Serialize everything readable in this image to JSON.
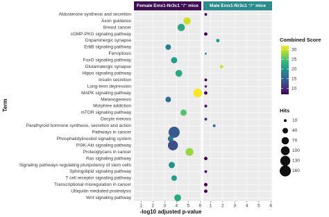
{
  "chart_data": {
    "type": "dotplot",
    "x_label": "-log10 adjusted p-value",
    "y_label": "Term",
    "colormap": "viridis",
    "categories": [
      "Aldosterone synthesis and secretion",
      "Axon guidance",
      "Breast cancer",
      "cGMP-PKG signaling pathway",
      "Dopaminergic synapse",
      "ErbB signaling pathway",
      "Ferroptosis",
      "FoxO signaling pathway",
      "Glutamatergic synapse",
      "Hippo signaling pathway",
      "Insulin secretion",
      "Long-term depression",
      "MAPK signaling pathway",
      "Melanogenesis",
      "Morphine addiction",
      "mTOR signaling pathway",
      "Oocyte meiosis",
      "Parathyroid hormone synthesis, secretion and action",
      "Pathways in cancer",
      "Phosphatidylinositol signaling system",
      "PI3K-Akt signaling pathway",
      "Proteoglycans in cancer",
      "Ras signaling pathway",
      "Signaling pathways regulating pluripotency of stem cells",
      "Sphingolipid signaling pathway",
      "T cell receptor signaling pathway",
      "Transcriptional misregulation in cancer",
      "Ubiquitin mediated proteolysis",
      "Wnt signaling pathway"
    ],
    "xlim": [
      0.4,
      6.1
    ],
    "xticks": [
      1,
      2,
      3,
      4,
      5,
      6
    ],
    "facets": [
      {
        "title": "Female Emx1-Nr3c1 ⁻/⁻ mice",
        "strip_color": "#3f0f55",
        "x": [
          null,
          4.9,
          4.4,
          null,
          null,
          3.3,
          null,
          3.8,
          null,
          4.2,
          null,
          null,
          5.8,
          3.3,
          null,
          4.6,
          null,
          null,
          3.8,
          3.5,
          3.7,
          5.1,
          null,
          3.6,
          null,
          3.8,
          null,
          null,
          4.1
        ],
        "hits": [
          null,
          70,
          70,
          null,
          null,
          40,
          null,
          50,
          null,
          60,
          null,
          null,
          100,
          40,
          null,
          50,
          null,
          null,
          160,
          40,
          130,
          80,
          null,
          50,
          null,
          40,
          null,
          null,
          60
        ],
        "score": [
          null,
          30,
          22,
          null,
          null,
          18,
          null,
          21,
          null,
          22,
          null,
          null,
          32,
          16,
          null,
          25,
          null,
          null,
          14,
          17,
          13,
          28,
          null,
          20,
          null,
          21,
          null,
          null,
          22
        ]
      },
      {
        "title": "Male Emx1-Nr3c1 ⁻/⁻ mice",
        "strip_color": "#2a8c8c",
        "x": [
          0.6,
          null,
          null,
          0.6,
          1.6,
          null,
          0.6,
          null,
          1.9,
          null,
          0.6,
          0.6,
          0.6,
          null,
          0.6,
          null,
          0.6,
          1.3,
          null,
          null,
          null,
          null,
          0.6,
          null,
          0.6,
          null,
          0.6,
          0.6,
          null
        ],
        "hits": [
          10,
          null,
          null,
          15,
          15,
          null,
          5,
          null,
          15,
          null,
          10,
          8,
          15,
          null,
          10,
          null,
          10,
          10,
          null,
          null,
          null,
          null,
          15,
          null,
          10,
          null,
          15,
          15,
          null
        ],
        "score": [
          8,
          null,
          null,
          6,
          20,
          null,
          18,
          null,
          30,
          null,
          6,
          10,
          6,
          null,
          8,
          null,
          10,
          16,
          null,
          null,
          null,
          null,
          5,
          null,
          9,
          null,
          7,
          7,
          null
        ]
      }
    ],
    "color_legend": {
      "title": "Combined Score",
      "lim": [
        7,
        32
      ],
      "ticks": [
        10,
        15,
        20,
        25,
        30
      ]
    },
    "size_legend": {
      "title": "Hits",
      "values": [
        10,
        40,
        70,
        100,
        130,
        160
      ]
    }
  }
}
